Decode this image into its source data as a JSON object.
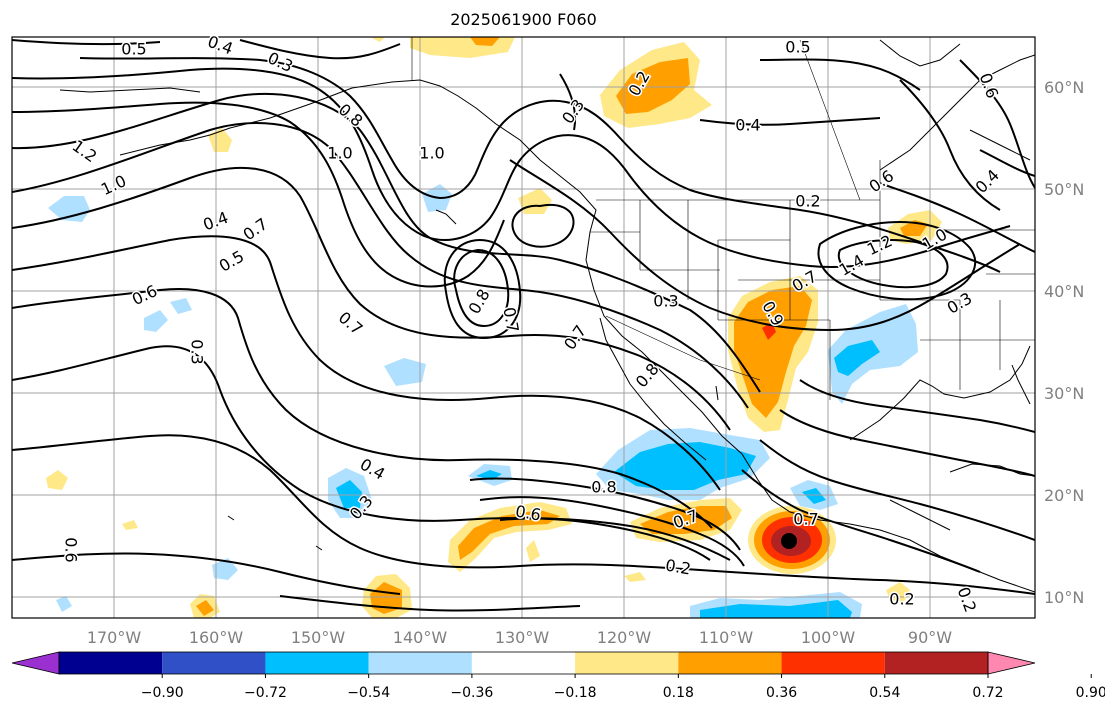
{
  "title": "2025061900 F060",
  "lat_labels": [
    "60°N",
    "50°N",
    "40°N",
    "30°N",
    "20°N",
    "10°N"
  ],
  "lon_labels": [
    "170°W",
    "160°W",
    "150°W",
    "140°W",
    "130°W",
    "120°W",
    "110°W",
    "100°W",
    "90°W"
  ],
  "colorbar": {
    "colors": [
      "#9b30d0",
      "#000090",
      "#3050c8",
      "#00bfff",
      "#b0e0ff",
      "#ffffff",
      "#ffe888",
      "#ffa000",
      "#ff3000",
      "#b22222",
      "#ff88b0"
    ],
    "tick_labels": [
      "−0.90",
      "−0.72",
      "−0.54",
      "−0.36",
      "−0.18",
      "0.18",
      "0.36",
      "0.54",
      "0.72",
      "0.90"
    ]
  },
  "contour_labels": [
    "0.5",
    "0.4",
    "0.3",
    "1.2",
    "1.0",
    "0.8",
    "1.0",
    "0.4",
    "1.0",
    "0.7",
    "0.5",
    "0.6",
    "0.3",
    "0.7",
    "0.8",
    "0.7",
    "0.7",
    "0.8",
    "0.3",
    "0.6",
    "0.7",
    "0.4",
    "0.3",
    "0.8",
    "0.6",
    "0.7",
    "0.2",
    "0.2",
    "0.2",
    "0.5",
    "0.4",
    "0.3",
    "0.2",
    "0.6",
    "0.7",
    "1.4",
    "1.2",
    "1.0",
    "0.9",
    "0.3",
    "0.2",
    "0.4",
    "0.6"
  ]
}
